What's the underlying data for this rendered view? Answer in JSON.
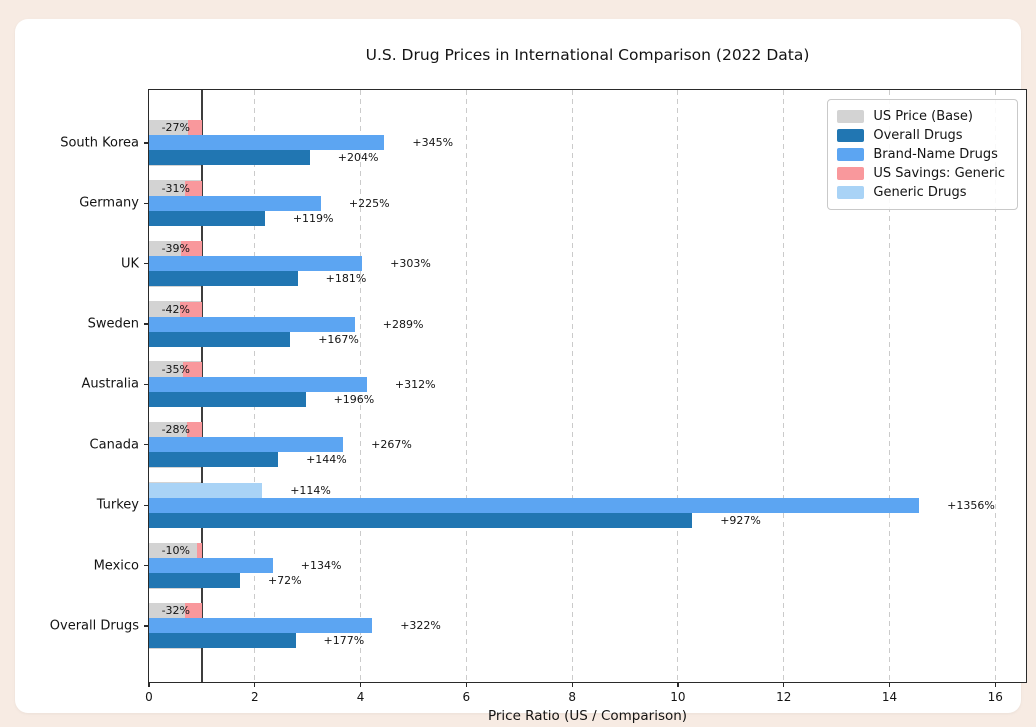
{
  "page": {
    "background_color": "#f7ebe3",
    "card_background_color": "#ffffff"
  },
  "chart_data": {
    "type": "bar",
    "orientation": "horizontal",
    "title": "U.S. Drug Prices in International Comparison (2022 Data)",
    "xlabel": "Price Ratio (US / Comparison)",
    "xlim": [
      0,
      16.58
    ],
    "xticks": [
      0,
      2,
      4,
      6,
      8,
      10,
      12,
      14,
      16
    ],
    "reference_line_x": 1.0,
    "grid": {
      "visible": true,
      "style": "dashed",
      "color": "#cbcbcb"
    },
    "legend_position": "top-right",
    "categories": [
      "South Korea",
      "Germany",
      "UK",
      "Sweden",
      "Australia",
      "Canada",
      "Turkey",
      "Mexico",
      "Overall Drugs"
    ],
    "series": [
      {
        "id": "base",
        "name": "US Price (Base)",
        "color": "#d3d3d3",
        "values": [
          1,
          1,
          1,
          1,
          1,
          1,
          1,
          1,
          1
        ]
      },
      {
        "id": "overall",
        "name": "Overall Drugs",
        "color": "#2176b2",
        "values": [
          3.04,
          2.19,
          2.81,
          2.67,
          2.96,
          2.44,
          10.27,
          1.72,
          2.77
        ],
        "labels": [
          "+204%",
          "+119%",
          "+181%",
          "+167%",
          "+196%",
          "+144%",
          "+927%",
          "+72%",
          "+177%"
        ]
      },
      {
        "id": "brand",
        "name": "Brand-Name Drugs",
        "color": "#5ca5f2",
        "values": [
          4.45,
          3.25,
          4.03,
          3.89,
          4.12,
          3.67,
          14.56,
          2.34,
          4.22
        ],
        "labels": [
          "+345%",
          "+225%",
          "+303%",
          "+289%",
          "+312%",
          "+267%",
          "+1356%",
          "+134%",
          "+322%"
        ]
      },
      {
        "id": "savings",
        "name": "US Savings: Generic",
        "color": "#f9989c"
      },
      {
        "id": "generic",
        "name": "Generic Drugs",
        "color": "#a9d3f6",
        "values": [
          0.73,
          0.69,
          0.61,
          0.58,
          0.65,
          0.72,
          2.14,
          0.9,
          0.68
        ],
        "labels": [
          "-27%",
          "-31%",
          "-39%",
          "-42%",
          "-35%",
          "-28%",
          "+114%",
          "-10%",
          "-32%"
        ]
      }
    ],
    "legend": [
      "US Price (Base)",
      "Overall Drugs",
      "Brand-Name Drugs",
      "US Savings: Generic",
      "Generic Drugs"
    ]
  }
}
